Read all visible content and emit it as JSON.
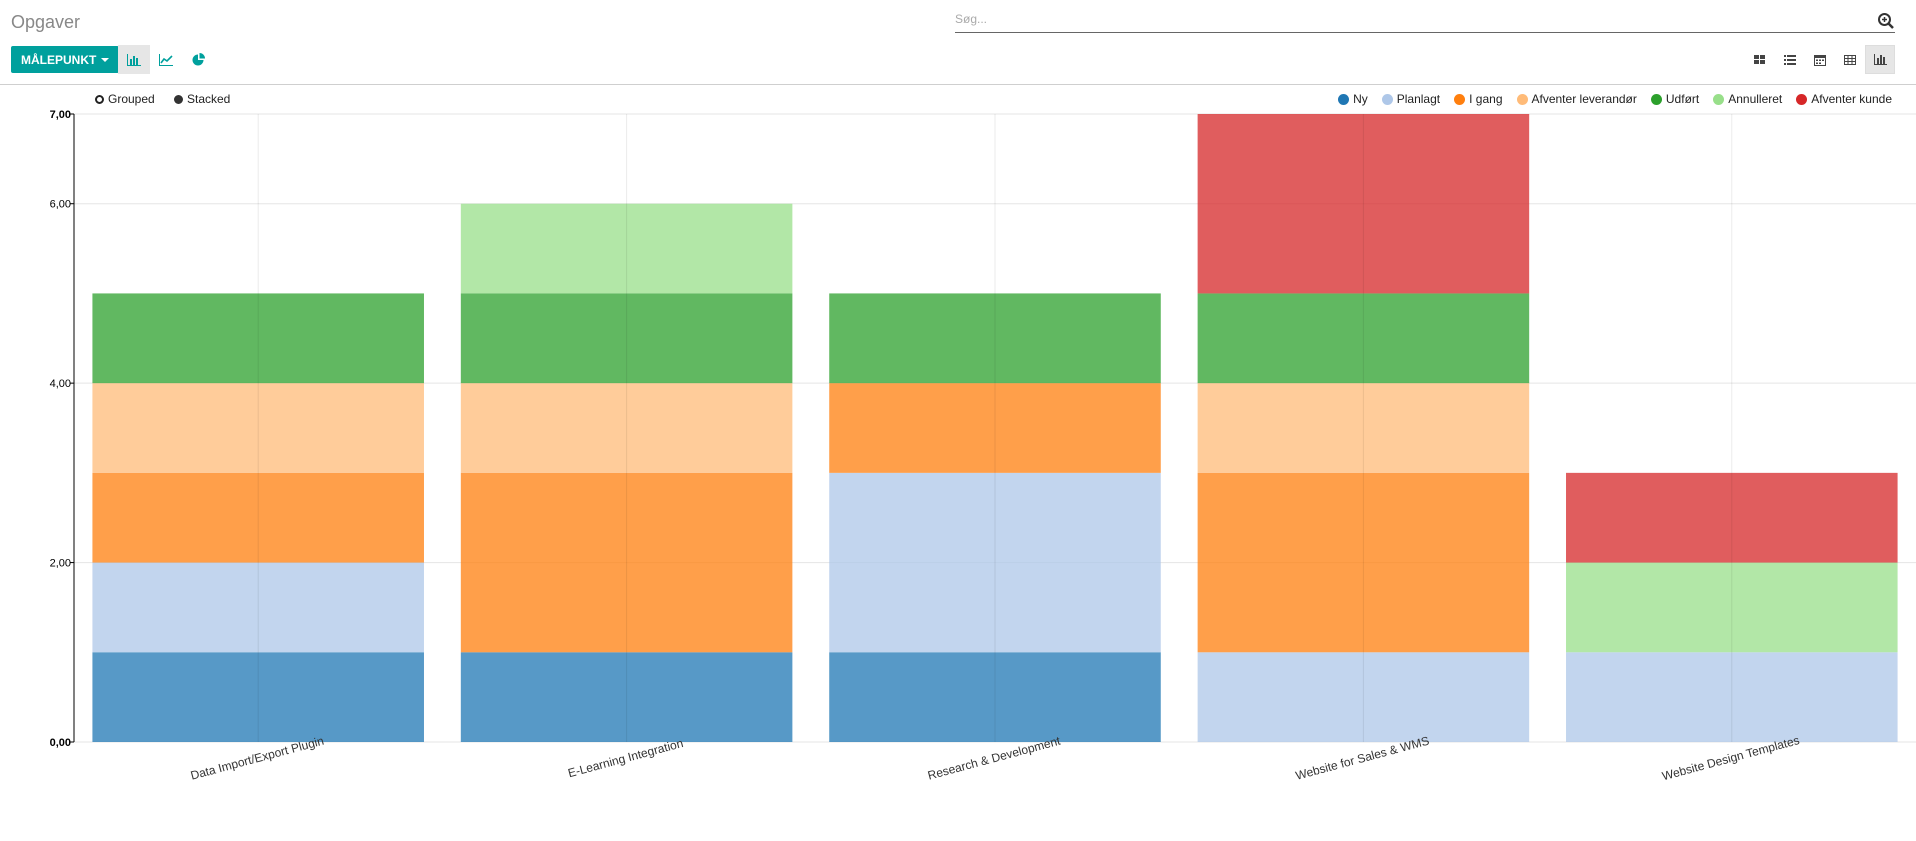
{
  "header": {
    "title": "Opgaver"
  },
  "search": {
    "placeholder": "Søg..."
  },
  "toolbar": {
    "measure_label": "MÅLEPUNKT"
  },
  "chart_types": [
    {
      "name": "bar-chart-icon",
      "active": true
    },
    {
      "name": "line-chart-icon",
      "active": false
    },
    {
      "name": "pie-chart-icon",
      "active": false
    }
  ],
  "views": [
    {
      "name": "kanban-view-icon",
      "active": false
    },
    {
      "name": "list-view-icon",
      "active": false
    },
    {
      "name": "calendar-view-icon",
      "active": false
    },
    {
      "name": "pivot-view-icon",
      "active": false
    },
    {
      "name": "graph-view-icon",
      "active": true
    }
  ],
  "modes": {
    "grouped": "Grouped",
    "stacked": "Stacked"
  },
  "chart_data": {
    "type": "bar",
    "stacked": true,
    "categories": [
      "Data Import/Export Plugin",
      "E-Learning Integration",
      "Research & Development",
      "Website for Sales & WMS",
      "Website Design Templates"
    ],
    "series": [
      {
        "name": "Ny",
        "color": "#1f77b4",
        "values": [
          1,
          1,
          1,
          0,
          0
        ]
      },
      {
        "name": "Planlagt",
        "color": "#aec7e8",
        "values": [
          1,
          0,
          2,
          1,
          1
        ]
      },
      {
        "name": "I gang",
        "color": "#ff7f0e",
        "values": [
          1,
          2,
          1,
          2,
          0
        ]
      },
      {
        "name": "Afventer leverandør",
        "color": "#ffbb78",
        "values": [
          1,
          1,
          0,
          1,
          0
        ]
      },
      {
        "name": "Udført",
        "color": "#2ca02c",
        "values": [
          1,
          1,
          1,
          1,
          0
        ]
      },
      {
        "name": "Annulleret",
        "color": "#98df8a",
        "values": [
          0,
          1,
          0,
          0,
          1
        ]
      },
      {
        "name": "Afventer kunde",
        "color": "#d62728",
        "values": [
          0,
          0,
          0,
          2,
          1
        ]
      }
    ],
    "ylim": [
      0,
      7
    ],
    "yticks": [
      0,
      2,
      4,
      6,
      7
    ],
    "ytick_labels": [
      "0,00",
      "2,00",
      "4,00",
      "6,00",
      "7,00"
    ],
    "legend_position": "top-right",
    "grid": true
  }
}
